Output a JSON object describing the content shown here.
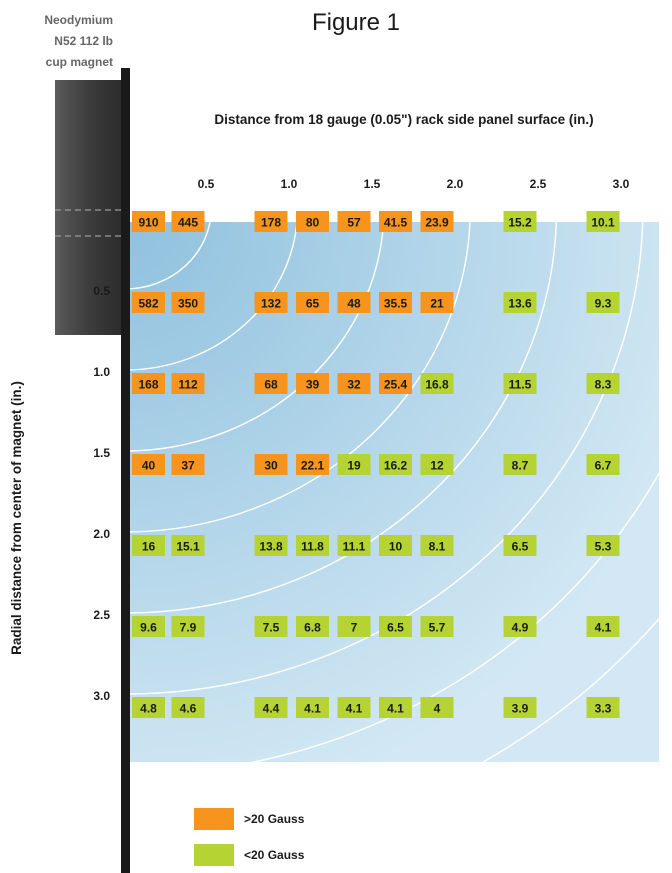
{
  "chart_data": {
    "type": "heatmap",
    "title": "Figure 1",
    "magnet_label": [
      "Neodymium",
      "N52 112 lb",
      "cup magnet"
    ],
    "xlabel": "Distance from 18 gauge (0.05\") rack side panel surface (in.)",
    "ylabel": "Radial distance from center of magnet (in.)",
    "x_tick_labels": [
      "0.5",
      "1.0",
      "1.5",
      "2.0",
      "2.5",
      "3.0"
    ],
    "y_tick_labels": [
      "0.5",
      "1.0",
      "1.5",
      "2.0",
      "2.5",
      "3.0"
    ],
    "x_values": [
      0,
      0.25,
      0.75,
      1.0,
      1.25,
      1.5,
      1.75,
      2.25,
      2.75
    ],
    "y_values": [
      0,
      0.5,
      1.0,
      1.5,
      2.0,
      2.5,
      3.0
    ],
    "threshold_gauss": 20,
    "values": [
      [
        "910",
        "445",
        "178",
        "80",
        "57",
        "41.5",
        "23.9",
        "15.2",
        "10.1"
      ],
      [
        "582",
        "350",
        "132",
        "65",
        "48",
        "35.5",
        "21",
        "13.6",
        "9.3"
      ],
      [
        "168",
        "112",
        "68",
        "39",
        "32",
        "25.4",
        "16.8",
        "11.5",
        "8.3"
      ],
      [
        "40",
        "37",
        "30",
        "22.1",
        "19",
        "16.2",
        "12",
        "8.7",
        "6.7"
      ],
      [
        "16",
        "15.1",
        "13.8",
        "11.8",
        "11.1",
        "10",
        "8.1",
        "6.5",
        "5.3"
      ],
      [
        "9.6",
        "7.9",
        "7.5",
        "6.8",
        "7",
        "6.5",
        "5.7",
        "4.9",
        "4.1"
      ],
      [
        "4.8",
        "4.6",
        "4.4",
        "4.1",
        "4.1",
        "4.1",
        "4",
        "3.9",
        "3.3"
      ]
    ],
    "legend": [
      {
        "label": ">20 Gauss",
        "color": "#f7941d"
      },
      {
        "label": "<20 Gauss",
        "color": "#b5d333"
      }
    ],
    "colors": {
      "above": "#f7941d",
      "below": "#b5d333",
      "field_light": "#cfe6f3",
      "field_dark": "#8fc1de",
      "magnet_dark": "#3a3a3a",
      "magnet_light": "#5e5e5e",
      "panel": "#1a1a1a"
    }
  }
}
